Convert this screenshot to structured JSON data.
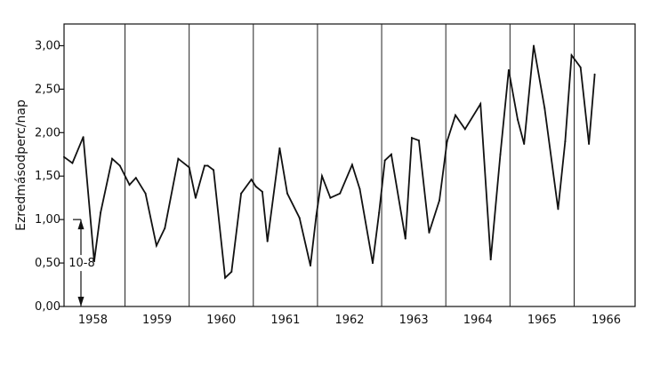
{
  "chart_data": {
    "type": "line",
    "title": "",
    "xlabel": "",
    "ylabel": "Ezredmásodperc/nap",
    "ylim": [
      0,
      3.25
    ],
    "xlim": [
      1957.55,
      1966.45
    ],
    "yticks": [
      "0,00",
      "0,50",
      "1,00",
      "1,50",
      "2,00",
      "2,50",
      "3,00"
    ],
    "ytick_values": [
      0,
      0.5,
      1.0,
      1.5,
      2.0,
      2.5,
      3.0
    ],
    "year_labels": [
      "1958",
      "1959",
      "1960",
      "1961",
      "1962",
      "1963",
      "1964",
      "1965",
      "1966"
    ],
    "year_label_values": [
      1958,
      1959,
      1960,
      1961,
      1962,
      1963,
      1964,
      1965,
      1966
    ],
    "year_boundaries": [
      1958.5,
      1959.5,
      1960.5,
      1961.5,
      1962.5,
      1963.5,
      1964.5,
      1965.5
    ],
    "grid": false,
    "annotation": {
      "text": "10-8",
      "y_from": 0.0,
      "y_to": 1.0
    },
    "series": [
      {
        "x": [
          1957.55,
          1957.68,
          1957.85,
          1958.02,
          1958.12,
          1958.3,
          1958.42,
          1958.57,
          1958.67,
          1958.82,
          1958.99,
          1959.12,
          1959.33,
          1959.5,
          1959.6,
          1959.74,
          1959.79,
          1959.88,
          1960.06,
          1960.16,
          1960.31,
          1960.47,
          1960.54,
          1960.64,
          1960.72,
          1960.91,
          1961.03,
          1961.22,
          1961.39,
          1961.48,
          1961.57,
          1961.7,
          1961.85,
          1962.04,
          1962.16,
          1962.36,
          1962.46,
          1962.55,
          1962.65,
          1962.87,
          1962.97,
          1963.08,
          1963.24,
          1963.4,
          1963.52,
          1963.65,
          1963.8,
          1964.04,
          1964.2,
          1964.35,
          1964.48,
          1964.62,
          1964.72,
          1964.87,
          1965.04,
          1965.25,
          1965.36,
          1965.46,
          1965.6,
          1965.73,
          1965.82
        ],
        "values": [
          1.72,
          1.65,
          1.95,
          0.52,
          1.08,
          1.7,
          1.62,
          1.4,
          1.48,
          1.3,
          0.7,
          0.9,
          1.7,
          1.6,
          1.25,
          1.62,
          1.62,
          1.57,
          0.33,
          0.4,
          1.3,
          1.46,
          1.38,
          1.32,
          0.75,
          1.82,
          1.3,
          1.02,
          0.47,
          1.04,
          1.5,
          1.25,
          1.3,
          1.63,
          1.35,
          0.5,
          1.08,
          1.68,
          1.75,
          0.78,
          1.94,
          1.91,
          0.85,
          1.22,
          1.9,
          2.2,
          2.04,
          2.33,
          0.54,
          1.75,
          2.72,
          2.15,
          1.87,
          3.0,
          2.28,
          1.12,
          1.9,
          2.89,
          2.75,
          1.87,
          2.67
        ]
      }
    ]
  }
}
